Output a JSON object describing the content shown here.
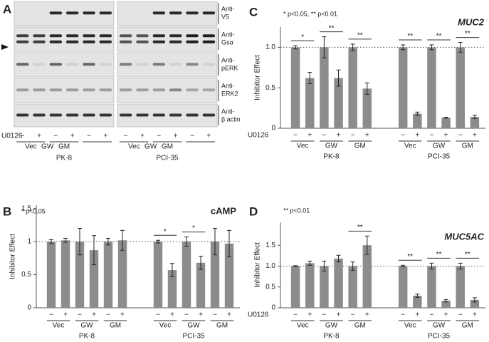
{
  "blot": {
    "panel": "A",
    "rows": [
      [
        "Anti-",
        "V5"
      ],
      [
        "Anti-",
        "Gsα"
      ],
      [
        "Anti-",
        "pERK"
      ],
      [
        "Anti-",
        "ERK2"
      ],
      [
        "Anti-",
        "β actin"
      ]
    ],
    "treatment": "U0126",
    "signs": [
      "−",
      "+",
      "−",
      "+",
      "−",
      "+"
    ],
    "groups": [
      "Vec",
      "GW",
      "GM"
    ],
    "lines": [
      "PK-8",
      "PCI-35"
    ]
  },
  "chart_data": [
    {
      "type": "bar",
      "panel": "B",
      "title": "cAMP",
      "note": "* p<0.05",
      "y_label": "Inhibitor Effect",
      "categories": [
        "−",
        "+",
        "−",
        "+",
        "−",
        "+",
        "−",
        "+",
        "−",
        "+",
        "−",
        "+"
      ],
      "groups": [
        "Vec",
        "GW",
        "GM",
        "Vec",
        "GW",
        "GM"
      ],
      "lines": [
        "PK-8",
        "PCI-35"
      ],
      "series": [
        {
          "color": "#8c8c8c",
          "values": [
            1.0,
            1.02,
            1.0,
            0.87,
            1.0,
            1.02,
            1.0,
            0.57,
            1.0,
            0.68,
            1.0,
            0.97
          ],
          "errors": [
            0.03,
            0.03,
            0.2,
            0.22,
            0.05,
            0.15,
            0.02,
            0.1,
            0.07,
            0.1,
            0.2,
            0.2
          ]
        }
      ],
      "significance": [
        null,
        null,
        null,
        "*",
        "*",
        null
      ],
      "reference_line": 1,
      "ylim": [
        0,
        1.55
      ],
      "yticks": [
        0,
        0.5,
        1,
        1.5
      ]
    },
    {
      "type": "bar",
      "panel": "C",
      "title": "MUC2",
      "note": "* p<0.05, ** p<0.01",
      "y_label": "Inhibitor Effect",
      "treatment": "U0126",
      "categories": [
        "−",
        "+",
        "−",
        "+",
        "−",
        "+",
        "−",
        "+",
        "−",
        "+",
        "−",
        "+"
      ],
      "groups": [
        "Vec",
        "GW",
        "GM",
        "Vec",
        "GW",
        "GM"
      ],
      "lines": [
        "PK-8",
        "PCI-35"
      ],
      "series": [
        {
          "color": "#8c8c8c",
          "values": [
            1.0,
            0.62,
            1.0,
            0.62,
            1.0,
            0.49,
            1.0,
            0.18,
            1.0,
            0.13,
            1.0,
            0.14
          ],
          "errors": [
            0.02,
            0.07,
            0.13,
            0.1,
            0.04,
            0.07,
            0.03,
            0.02,
            0.03,
            0.005,
            0.06,
            0.02
          ]
        }
      ],
      "significance": [
        "*",
        "**",
        "**",
        "**",
        "**",
        "**"
      ],
      "reference_line": 1,
      "ylim": [
        0,
        1.25
      ],
      "yticks": [
        0,
        0.5,
        {
          "value": 1,
          "label": "1.0"
        }
      ]
    },
    {
      "type": "bar",
      "panel": "D",
      "title": "MUC5AC",
      "note": "** p<0.01",
      "y_label": "Inhibitor Effect",
      "treatment": "U0126",
      "categories": [
        "−",
        "+",
        "−",
        "+",
        "−",
        "+",
        "−",
        "+",
        "−",
        "+",
        "−",
        "+"
      ],
      "groups": [
        "Vec",
        "GW",
        "GM",
        "Vec",
        "GW",
        "GM"
      ],
      "lines": [
        "PK-8",
        "PCI-35"
      ],
      "series": [
        {
          "color": "#8c8c8c",
          "values": [
            1.0,
            1.07,
            1.0,
            1.18,
            1.0,
            1.5,
            1.0,
            0.29,
            1.0,
            0.17,
            1.0,
            0.19
          ],
          "errors": [
            0.01,
            0.05,
            0.12,
            0.08,
            0.1,
            0.22,
            0.02,
            0.04,
            0.07,
            0.03,
            0.07,
            0.05
          ]
        }
      ],
      "significance": [
        null,
        null,
        "**",
        "**",
        "**",
        "**"
      ],
      "reference_line": 1,
      "ylim": [
        0,
        2.05
      ],
      "yticks": [
        0,
        0.5,
        {
          "value": 1,
          "label": "1.0"
        },
        1.5
      ]
    }
  ]
}
